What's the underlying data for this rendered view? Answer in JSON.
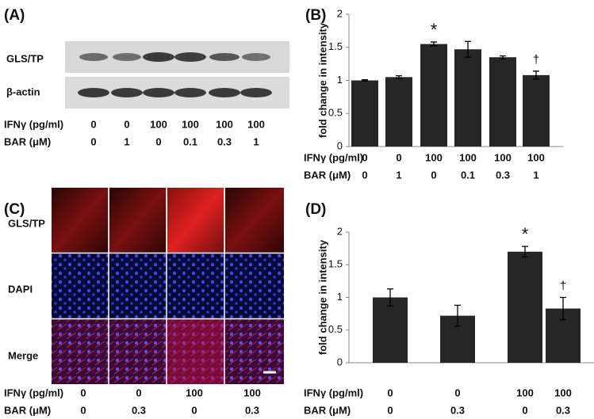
{
  "panel_a": {
    "label": "(A)",
    "row_labels": [
      "GLS/TP",
      "β-actin"
    ],
    "condition_labels": [
      "IFNγ (pg/ml)",
      "BAR (μM)"
    ],
    "conditions": [
      [
        "0",
        "0",
        "100",
        "100",
        "100",
        "100"
      ],
      [
        "0",
        "1",
        "0",
        "0.1",
        "0.3",
        "1"
      ]
    ]
  },
  "panel_c": {
    "label": "(C)",
    "row_labels": [
      "GLS/TP",
      "DAPI",
      "Merge"
    ],
    "condition_labels": [
      "IFNγ (pg/ml)",
      "BAR (μM)"
    ],
    "conditions": [
      [
        "0",
        "0",
        "100",
        "100"
      ],
      [
        "0",
        "0.3",
        "0",
        "0.3"
      ]
    ]
  },
  "chart_data": [
    {
      "type": "bar",
      "panel_label": "(B)",
      "y_label": "fold change in intensity",
      "values": [
        1.0,
        1.05,
        1.55,
        1.47,
        1.35,
        1.08
      ],
      "errors": [
        0.01,
        0.02,
        0.03,
        0.12,
        0.02,
        0.06
      ],
      "annotations": [
        null,
        null,
        "*",
        null,
        null,
        "†"
      ],
      "color": "#262626",
      "ylim": [
        0,
        2
      ],
      "yticks": [
        0,
        0.5,
        1,
        1.5,
        2
      ],
      "condition_labels": [
        "IFNγ (pg/ml)",
        "BAR (μM)"
      ],
      "conditions": [
        [
          "0",
          "0",
          "100",
          "100",
          "100",
          "100"
        ],
        [
          "0",
          "1",
          "0",
          "0.1",
          "0.3",
          "1"
        ]
      ]
    },
    {
      "type": "bar",
      "panel_label": "(D)",
      "y_label": "fold change in intensity",
      "values": [
        1.0,
        0.72,
        1.7,
        0.83
      ],
      "errors": [
        0.13,
        0.16,
        0.08,
        0.17
      ],
      "annotations": [
        null,
        null,
        "*",
        "†"
      ],
      "color": "#262626",
      "ylim": [
        0,
        2
      ],
      "yticks": [
        0,
        0.5,
        1,
        1.5,
        2
      ],
      "condition_labels": [
        "IFNγ (pg/ml)",
        "BAR (μM)"
      ],
      "conditions": [
        [
          "0",
          "0",
          "100",
          "100"
        ],
        [
          "0",
          "0.3",
          "0",
          "0.3"
        ]
      ]
    }
  ]
}
